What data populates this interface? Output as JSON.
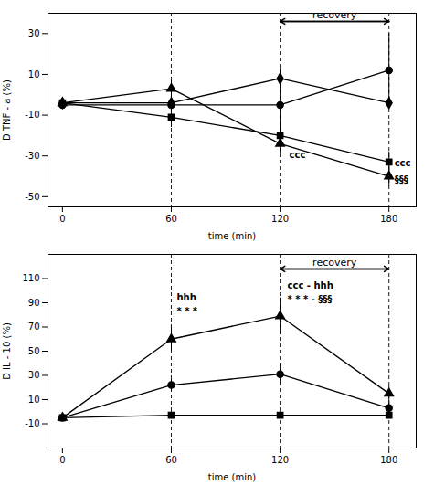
{
  "chart_data": [
    {
      "type": "line",
      "xlabel": "time (min)",
      "ylabel": "D TNF - a (%)",
      "color": "black",
      "x": [
        0,
        60,
        120,
        180
      ],
      "xlim": [
        -8,
        195
      ],
      "xticks": [
        0,
        60,
        120,
        180
      ],
      "ylim": [
        -55,
        40
      ],
      "yticks": [
        -50,
        -30,
        -10,
        10,
        30
      ],
      "series": [
        {
          "marker": "circle",
          "values": [
            -5,
            -5,
            -5,
            12
          ],
          "yerr": [
            2,
            5,
            13,
            18
          ]
        },
        {
          "marker": "diamond",
          "values": [
            -4,
            -4,
            8,
            -4
          ],
          "yerr": [
            2,
            3,
            5,
            3
          ]
        },
        {
          "marker": "square",
          "values": [
            -4,
            -11,
            -20,
            -33
          ],
          "yerr": [
            2,
            5,
            5,
            5
          ]
        },
        {
          "marker": "triangle",
          "values": [
            -4,
            3,
            -24,
            -40
          ],
          "yerr": [
            2,
            4,
            5,
            5
          ]
        }
      ],
      "vlines": [
        60,
        120,
        180
      ],
      "arrows": [
        {
          "text": "recovery",
          "x1": 120,
          "x2": 180,
          "y": 36
        }
      ],
      "annotations": [
        {
          "text": "ccc",
          "x": 125,
          "y": -28
        },
        {
          "text": "ccc",
          "x": 183,
          "y": -32
        },
        {
          "text": "§§§",
          "x": 183,
          "y": -40
        }
      ]
    },
    {
      "type": "line",
      "xlabel": "time (min)",
      "ylabel": "D IL - 10 (%)",
      "color": "black",
      "x": [
        0,
        60,
        120,
        180
      ],
      "xlim": [
        -8,
        195
      ],
      "xticks": [
        0,
        60,
        120,
        180
      ],
      "ylim": [
        -30,
        130
      ],
      "yticks": [
        -10,
        10,
        30,
        50,
        70,
        90,
        110
      ],
      "series": [
        {
          "marker": "circle",
          "values": [
            -5,
            22,
            31,
            3
          ],
          "yerr": [
            2,
            5,
            8,
            5
          ]
        },
        {
          "marker": "square",
          "values": [
            -5,
            -3,
            -3,
            -3
          ],
          "yerr": [
            2,
            3,
            3,
            3
          ]
        },
        {
          "marker": "triangle",
          "values": [
            -5,
            60,
            79,
            15
          ],
          "yerr": [
            2,
            10,
            15,
            7
          ]
        }
      ],
      "vlines": [
        60,
        120,
        180
      ],
      "arrows": [
        {
          "text": "recovery",
          "x1": 120,
          "x2": 180,
          "y": 118
        }
      ],
      "annotations": [
        {
          "text": "hhh",
          "x": 63,
          "y": 97
        },
        {
          "text": "* * *",
          "x": 63,
          "y": 86
        },
        {
          "text": "ccc - hhh",
          "x": 124,
          "y": 107
        },
        {
          "text": "* * * - §§§",
          "x": 124,
          "y": 96
        }
      ]
    }
  ]
}
